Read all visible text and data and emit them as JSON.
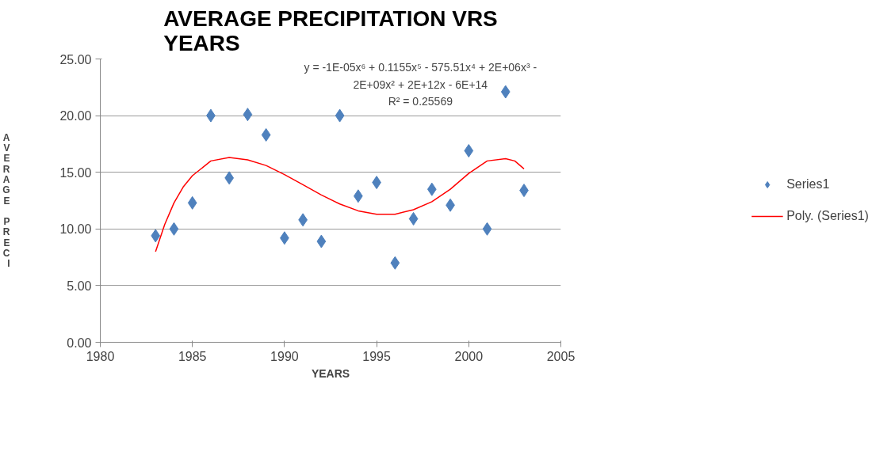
{
  "chart_data": {
    "type": "scatter",
    "title": "AVERAGE PRECIPITATION VRS YEARS",
    "xlabel": "YEARS",
    "ylabel": "AVERAGE PRECI",
    "x": [
      1983,
      1984,
      1985,
      1986,
      1987,
      1988,
      1989,
      1990,
      1991,
      1992,
      1993,
      1994,
      1995,
      1996,
      1997,
      1998,
      1999,
      2000,
      2001,
      2002,
      2003
    ],
    "series": [
      {
        "name": "Series1",
        "marker": "diamond",
        "color": "#4f81bd",
        "values": [
          9.4,
          10.0,
          12.3,
          20.0,
          14.5,
          20.1,
          18.3,
          9.2,
          10.8,
          8.9,
          20.0,
          12.9,
          14.1,
          7.0,
          10.9,
          13.5,
          12.1,
          16.9,
          10.0,
          22.1,
          13.4
        ]
      },
      {
        "name": "Poly. (Series1)",
        "type": "line",
        "line_style": "solid",
        "color": "#ff0000",
        "x": [
          1983,
          1983.5,
          1984,
          1984.5,
          1985,
          1986,
          1987,
          1988,
          1989,
          1990,
          1991,
          1992,
          1993,
          1994,
          1995,
          1996,
          1997,
          1998,
          1999,
          2000,
          2001,
          2002,
          2002.5,
          2003
        ],
        "values": [
          8.0,
          10.4,
          12.3,
          13.7,
          14.7,
          16.0,
          16.3,
          16.1,
          15.6,
          14.8,
          13.9,
          13.0,
          12.2,
          11.6,
          11.3,
          11.3,
          11.7,
          12.4,
          13.5,
          14.9,
          16.0,
          16.2,
          16.0,
          15.3
        ]
      }
    ],
    "xlim": [
      1980,
      2005
    ],
    "xticks": [
      1980,
      1985,
      1990,
      1995,
      2000,
      2005
    ],
    "ylim": [
      0,
      25
    ],
    "yticks": [
      {
        "value": 0,
        "label": "0.00"
      },
      {
        "value": 5,
        "label": "5.00"
      },
      {
        "value": 10,
        "label": "10.00"
      },
      {
        "value": 15,
        "label": "15.00"
      },
      {
        "value": 20,
        "label": "20.00"
      },
      {
        "value": 25,
        "label": "25.00"
      }
    ],
    "grid": "y",
    "legend": "right",
    "annotations": [
      "y = -1E-05x⁶ + 0.1155x⁵ - 575.51x⁴ + 2E+06x³ -",
      "2E+09x² + 2E+12x - 6E+14",
      "R² = 0.25569"
    ]
  }
}
